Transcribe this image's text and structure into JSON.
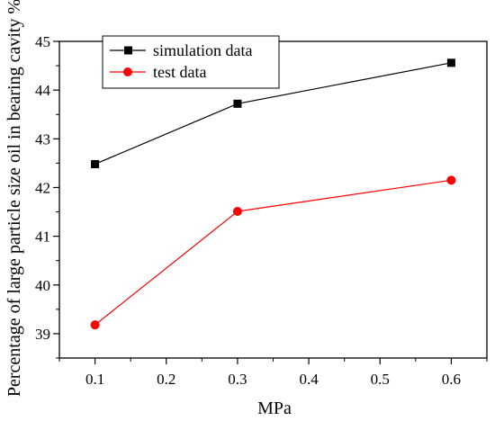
{
  "chart_data": {
    "type": "line",
    "xlabel": "MPa",
    "ylabel": "Percentage of large particle size oil in bearing cavity %",
    "xlim": [
      0.05,
      0.65
    ],
    "ylim": [
      38.5,
      45
    ],
    "x_ticks": [
      "0.1",
      "0.2",
      "0.3",
      "0.4",
      "0.5",
      "0.6"
    ],
    "y_ticks": [
      "39",
      "40",
      "41",
      "42",
      "43",
      "44",
      "45"
    ],
    "x_tick_values": [
      0.1,
      0.2,
      0.3,
      0.4,
      0.5,
      0.6
    ],
    "y_tick_values": [
      39,
      40,
      41,
      42,
      43,
      44,
      45
    ],
    "x": [
      0.1,
      0.3,
      0.6
    ],
    "series": [
      {
        "name": "simulation data",
        "values": [
          42.48,
          43.72,
          44.56
        ],
        "color": "#000000",
        "marker": "square"
      },
      {
        "name": "test data",
        "values": [
          39.18,
          41.51,
          42.15
        ],
        "color": "#ff0000",
        "marker": "circle"
      }
    ],
    "legend_position": "top-left",
    "grid": false
  }
}
